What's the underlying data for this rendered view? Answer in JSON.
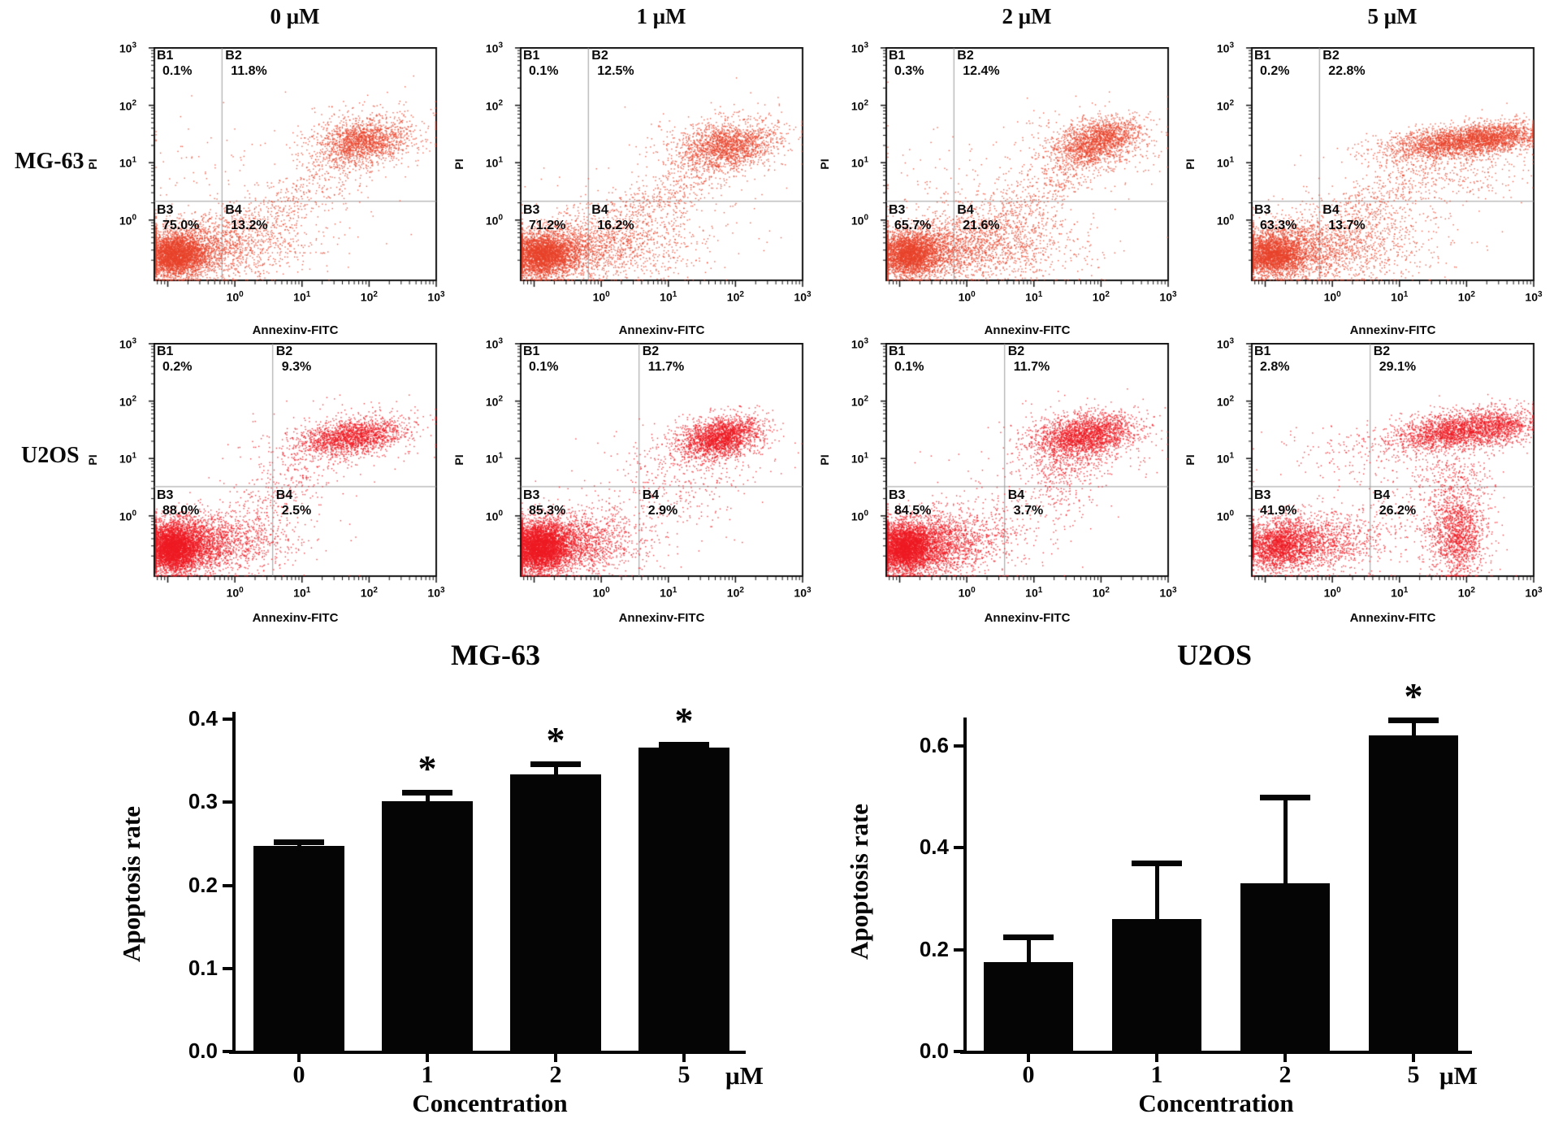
{
  "header_columns": [
    "0 μM",
    "1 μM",
    "2 μM",
    "5 μM"
  ],
  "row_labels": [
    "MG-63",
    "U2OS"
  ],
  "flow_axis": {
    "x_label": "Annexinv-FITC",
    "y_label": "PI",
    "tick_mantissa": "10",
    "tick_exponents": [
      "0",
      "1",
      "2",
      "3"
    ]
  },
  "chart_data": {
    "flow_panels": [
      {
        "type": "scatter",
        "row": "MG-63",
        "concentration": "0 μM",
        "dot_color": "#e8432b",
        "quadrants": [
          {
            "name": "B1",
            "pct": "0.1%"
          },
          {
            "name": "B2",
            "pct": "11.8%"
          },
          {
            "name": "B3",
            "pct": "75.0%"
          },
          {
            "name": "B4",
            "pct": "13.2%"
          }
        ],
        "gate_x": 0.24,
        "gate_y_top": 0.66,
        "clusters": [
          [
            0.07,
            0.11,
            0.05,
            0.045,
            2600,
            0
          ],
          [
            0.12,
            0.13,
            0.09,
            0.06,
            1600,
            0
          ],
          [
            0.3,
            0.15,
            0.13,
            0.08,
            700,
            0
          ],
          [
            0.74,
            0.6,
            0.08,
            0.045,
            1500,
            0.1
          ],
          [
            0.73,
            0.62,
            0.14,
            0.08,
            260,
            0.1
          ],
          [
            0.45,
            0.3,
            0.18,
            0.12,
            160,
            0
          ],
          [
            0.15,
            0.5,
            0.1,
            0.12,
            40,
            0
          ]
        ],
        "streams": [
          [
            0.3,
            0.2,
            0.74,
            0.56,
            420,
            0.055
          ]
        ]
      },
      {
        "type": "scatter",
        "row": "MG-63",
        "concentration": "1 μM",
        "dot_color": "#e8432b",
        "quadrants": [
          {
            "name": "B1",
            "pct": "0.1%"
          },
          {
            "name": "B2",
            "pct": "12.5%"
          },
          {
            "name": "B3",
            "pct": "71.2%"
          },
          {
            "name": "B4",
            "pct": "16.2%"
          }
        ],
        "gate_x": 0.24,
        "gate_y_top": 0.66,
        "clusters": [
          [
            0.07,
            0.11,
            0.05,
            0.045,
            2500,
            0
          ],
          [
            0.13,
            0.13,
            0.09,
            0.06,
            1500,
            0
          ],
          [
            0.33,
            0.15,
            0.15,
            0.08,
            900,
            0
          ],
          [
            0.73,
            0.58,
            0.085,
            0.05,
            1600,
            0.12
          ],
          [
            0.72,
            0.6,
            0.14,
            0.08,
            260,
            0.1
          ],
          [
            0.45,
            0.3,
            0.18,
            0.12,
            180,
            0
          ]
        ],
        "streams": [
          [
            0.32,
            0.2,
            0.72,
            0.55,
            500,
            0.055
          ]
        ]
      },
      {
        "type": "scatter",
        "row": "MG-63",
        "concentration": "2 μM",
        "dot_color": "#e8432b",
        "quadrants": [
          {
            "name": "B1",
            "pct": "0.3%"
          },
          {
            "name": "B2",
            "pct": "12.4%"
          },
          {
            "name": "B3",
            "pct": "65.7%"
          },
          {
            "name": "B4",
            "pct": "21.6%"
          }
        ],
        "gate_x": 0.24,
        "gate_y_top": 0.66,
        "clusters": [
          [
            0.08,
            0.11,
            0.05,
            0.045,
            2300,
            0
          ],
          [
            0.14,
            0.13,
            0.1,
            0.06,
            1500,
            0
          ],
          [
            0.36,
            0.15,
            0.16,
            0.08,
            1100,
            0
          ],
          [
            0.77,
            0.62,
            0.07,
            0.04,
            1200,
            0.12
          ],
          [
            0.7,
            0.55,
            0.06,
            0.035,
            500,
            0.1
          ],
          [
            0.73,
            0.6,
            0.14,
            0.08,
            280,
            0
          ],
          [
            0.45,
            0.3,
            0.18,
            0.12,
            200,
            0
          ],
          [
            0.15,
            0.45,
            0.12,
            0.12,
            50,
            0
          ]
        ],
        "streams": [
          [
            0.34,
            0.2,
            0.72,
            0.55,
            500,
            0.06
          ]
        ]
      },
      {
        "type": "scatter",
        "row": "MG-63",
        "concentration": "5 μM",
        "dot_color": "#e8432b",
        "quadrants": [
          {
            "name": "B1",
            "pct": "0.2%"
          },
          {
            "name": "B2",
            "pct": "22.8%"
          },
          {
            "name": "B3",
            "pct": "63.3%"
          },
          {
            "name": "B4",
            "pct": "13.7%"
          }
        ],
        "gate_x": 0.24,
        "gate_y_top": 0.66,
        "clusters": [
          [
            0.07,
            0.11,
            0.05,
            0.045,
            2100,
            0
          ],
          [
            0.13,
            0.13,
            0.09,
            0.06,
            1300,
            0
          ],
          [
            0.32,
            0.14,
            0.14,
            0.08,
            1000,
            0
          ],
          [
            0.74,
            0.6,
            0.13,
            0.035,
            2400,
            0.12
          ],
          [
            0.88,
            0.62,
            0.07,
            0.03,
            600,
            0.1
          ],
          [
            0.73,
            0.5,
            0.13,
            0.07,
            300,
            0
          ],
          [
            0.45,
            0.28,
            0.18,
            0.11,
            220,
            0
          ]
        ],
        "streams": [
          [
            0.32,
            0.2,
            0.66,
            0.54,
            400,
            0.06
          ]
        ]
      },
      {
        "type": "scatter",
        "row": "U2OS",
        "concentration": "0 μM",
        "dot_color": "#ee1b23",
        "quadrants": [
          {
            "name": "B1",
            "pct": "0.2%"
          },
          {
            "name": "B2",
            "pct": "9.3%"
          },
          {
            "name": "B3",
            "pct": "88.0%"
          },
          {
            "name": "B4",
            "pct": "2.5%"
          }
        ],
        "gate_x": 0.42,
        "gate_y_top": 0.615,
        "clusters": [
          [
            0.06,
            0.12,
            0.045,
            0.05,
            3200,
            0
          ],
          [
            0.11,
            0.14,
            0.085,
            0.06,
            2200,
            0
          ],
          [
            0.26,
            0.15,
            0.12,
            0.07,
            900,
            0
          ],
          [
            0.7,
            0.6,
            0.095,
            0.035,
            1700,
            0.15
          ],
          [
            0.67,
            0.6,
            0.15,
            0.07,
            300,
            0.1
          ],
          [
            0.45,
            0.35,
            0.12,
            0.12,
            140,
            0
          ]
        ],
        "streams": [
          [
            0.35,
            0.3,
            0.66,
            0.57,
            200,
            0.06
          ]
        ]
      },
      {
        "type": "scatter",
        "row": "U2OS",
        "concentration": "1 μM",
        "dot_color": "#ee1b23",
        "quadrants": [
          {
            "name": "B1",
            "pct": "0.1%"
          },
          {
            "name": "B2",
            "pct": "11.7%"
          },
          {
            "name": "B3",
            "pct": "85.3%"
          },
          {
            "name": "B4",
            "pct": "2.9%"
          }
        ],
        "gate_x": 0.42,
        "gate_y_top": 0.615,
        "clusters": [
          [
            0.06,
            0.12,
            0.045,
            0.05,
            3100,
            0
          ],
          [
            0.11,
            0.14,
            0.08,
            0.06,
            2100,
            0
          ],
          [
            0.25,
            0.15,
            0.11,
            0.07,
            800,
            0
          ],
          [
            0.71,
            0.6,
            0.07,
            0.042,
            2100,
            0.18
          ],
          [
            0.66,
            0.57,
            0.13,
            0.07,
            320,
            0.1
          ],
          [
            0.6,
            0.42,
            0.09,
            0.1,
            180,
            0
          ],
          [
            0.45,
            0.33,
            0.13,
            0.12,
            140,
            0
          ]
        ],
        "streams": []
      },
      {
        "type": "scatter",
        "row": "U2OS",
        "concentration": "2 μM",
        "dot_color": "#ee1b23",
        "quadrants": [
          {
            "name": "B1",
            "pct": "0.1%"
          },
          {
            "name": "B2",
            "pct": "11.7%"
          },
          {
            "name": "B3",
            "pct": "84.5%"
          },
          {
            "name": "B4",
            "pct": "3.7%"
          }
        ],
        "gate_x": 0.42,
        "gate_y_top": 0.615,
        "clusters": [
          [
            0.06,
            0.12,
            0.045,
            0.05,
            3000,
            0
          ],
          [
            0.12,
            0.14,
            0.085,
            0.06,
            2100,
            0
          ],
          [
            0.26,
            0.15,
            0.12,
            0.07,
            850,
            0
          ],
          [
            0.71,
            0.61,
            0.085,
            0.045,
            2100,
            0.15
          ],
          [
            0.63,
            0.47,
            0.06,
            0.1,
            420,
            0
          ],
          [
            0.67,
            0.58,
            0.14,
            0.08,
            320,
            0
          ],
          [
            0.45,
            0.33,
            0.13,
            0.12,
            170,
            0
          ]
        ],
        "streams": []
      },
      {
        "type": "scatter",
        "row": "U2OS",
        "concentration": "5 μM",
        "dot_color": "#ee1b23",
        "quadrants": [
          {
            "name": "B1",
            "pct": "2.8%"
          },
          {
            "name": "B2",
            "pct": "29.1%"
          },
          {
            "name": "B3",
            "pct": "41.9%"
          },
          {
            "name": "B4",
            "pct": "26.2%"
          }
        ],
        "gate_x": 0.42,
        "gate_y_top": 0.615,
        "clusters": [
          [
            0.09,
            0.13,
            0.06,
            0.05,
            1600,
            0
          ],
          [
            0.16,
            0.15,
            0.1,
            0.06,
            1100,
            0
          ],
          [
            0.3,
            0.16,
            0.1,
            0.07,
            450,
            0
          ],
          [
            0.73,
            0.63,
            0.12,
            0.04,
            2300,
            0.15
          ],
          [
            0.9,
            0.64,
            0.05,
            0.035,
            400,
            0.1
          ],
          [
            0.73,
            0.17,
            0.05,
            0.09,
            1300,
            0
          ],
          [
            0.72,
            0.38,
            0.07,
            0.12,
            500,
            0
          ],
          [
            0.35,
            0.55,
            0.15,
            0.07,
            130,
            0
          ],
          [
            0.5,
            0.25,
            0.15,
            0.12,
            200,
            0
          ]
        ],
        "streams": []
      }
    ],
    "bar_charts": [
      {
        "type": "bar",
        "title": "MG-63",
        "xlabel": "Concentration",
        "ylabel": "Apoptosis rate",
        "unit": "μM",
        "categories": [
          "0",
          "1",
          "2",
          "5"
        ],
        "values": [
          0.248,
          0.301,
          0.334,
          0.366
        ],
        "errors": [
          0.004,
          0.011,
          0.012,
          0.004
        ],
        "significant": [
          false,
          true,
          true,
          true
        ],
        "sig_marker": "*",
        "y_tick_labels": [
          "0.0",
          "0.1",
          "0.2",
          "0.3",
          "0.4"
        ],
        "y_ticks": [
          0.0,
          0.1,
          0.2,
          0.3,
          0.4
        ],
        "ylim": [
          0,
          0.4
        ]
      },
      {
        "type": "bar",
        "title": "U2OS",
        "xlabel": "Concentration",
        "ylabel": "Apoptosis rate",
        "unit": "μM",
        "categories": [
          "0",
          "1",
          "2",
          "5"
        ],
        "values": [
          0.175,
          0.26,
          0.33,
          0.62
        ],
        "errors": [
          0.05,
          0.11,
          0.17,
          0.03
        ],
        "significant": [
          false,
          false,
          false,
          true
        ],
        "sig_marker": "*",
        "y_tick_labels": [
          "0.0",
          "0.2",
          "0.4",
          "0.6"
        ],
        "y_ticks": [
          0.0,
          0.2,
          0.4,
          0.6
        ],
        "ylim": [
          0,
          0.655
        ]
      }
    ]
  }
}
